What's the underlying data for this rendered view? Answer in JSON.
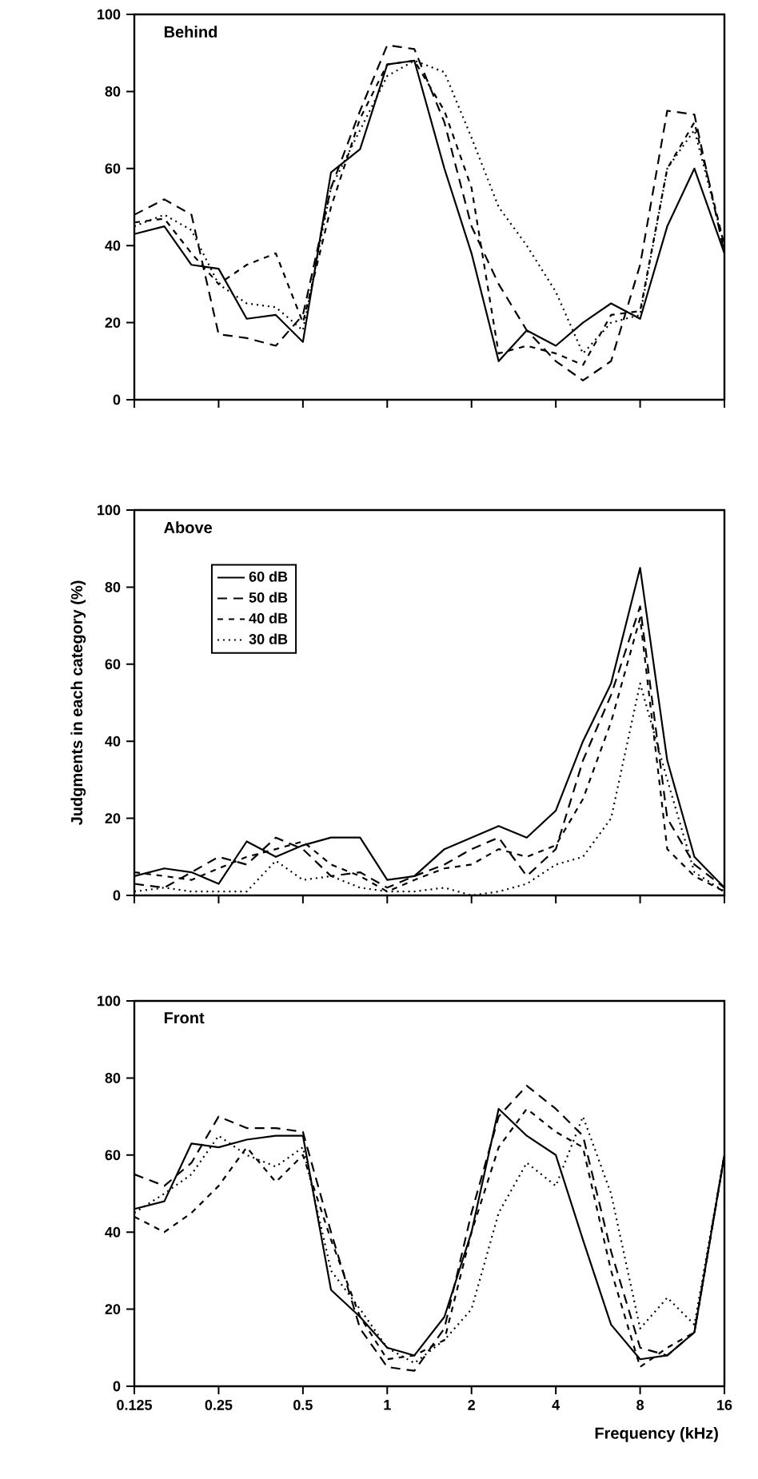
{
  "chart_data": [
    {
      "type": "line",
      "log": "x",
      "title": "Behind",
      "x": [
        0.125,
        0.16,
        0.2,
        0.25,
        0.315,
        0.4,
        0.5,
        0.63,
        0.8,
        1,
        1.25,
        1.6,
        2,
        2.5,
        3.15,
        4,
        5,
        6.3,
        8,
        10,
        12.5,
        16
      ],
      "xlim": [
        0.125,
        16
      ],
      "xticks": [
        0.125,
        0.25,
        0.5,
        1,
        2,
        4,
        8,
        16
      ],
      "ylim": [
        0,
        100
      ],
      "yticks": [
        0,
        20,
        40,
        60,
        80,
        100
      ],
      "tick_labels": "y",
      "series": [
        {
          "color": "#000000",
          "line_style": "solid",
          "values": [
            43,
            45,
            35,
            34,
            21,
            22,
            15,
            59,
            65,
            87,
            88,
            60,
            38,
            10,
            18,
            14,
            20,
            25,
            21,
            45,
            60,
            38
          ]
        },
        {
          "color": "#000000",
          "line_style": "dashed",
          "values": [
            48,
            52,
            48,
            17,
            16,
            14,
            22,
            55,
            75,
            92,
            91,
            72,
            45,
            30,
            18,
            10,
            5,
            10,
            35,
            75,
            74,
            38
          ]
        },
        {
          "color": "#000000",
          "line_style": "dashed",
          "values": [
            46,
            47,
            38,
            30,
            35,
            38,
            20,
            50,
            73,
            87,
            88,
            75,
            55,
            12,
            14,
            12,
            9,
            22,
            23,
            60,
            72,
            40
          ]
        },
        {
          "color": "#000000",
          "line_style": "dotted",
          "values": [
            45,
            48,
            44,
            30,
            25,
            24,
            18,
            55,
            70,
            84,
            88,
            85,
            68,
            50,
            40,
            28,
            12,
            20,
            22,
            60,
            70,
            40
          ]
        }
      ]
    },
    {
      "type": "line",
      "log": "x",
      "title": "Above",
      "ylabel": "Judgments in each category (%)",
      "x": [
        0.125,
        0.16,
        0.2,
        0.25,
        0.315,
        0.4,
        0.5,
        0.63,
        0.8,
        1,
        1.25,
        1.6,
        2,
        2.5,
        3.15,
        4,
        5,
        6.3,
        8,
        10,
        12.5,
        16
      ],
      "xlim": [
        0.125,
        16
      ],
      "xticks": [
        0.125,
        0.25,
        0.5,
        1,
        2,
        4,
        8,
        16
      ],
      "ylim": [
        0,
        100
      ],
      "yticks": [
        0,
        20,
        40,
        60,
        80,
        100
      ],
      "tick_labels": "y",
      "legend": "top left",
      "series": [
        {
          "name": "60 dB",
          "color": "#000000",
          "line_style": "solid",
          "values": [
            5,
            7,
            6,
            3,
            14,
            10,
            13,
            15,
            15,
            4,
            5,
            12,
            15,
            18,
            15,
            22,
            40,
            55,
            85,
            35,
            10,
            2
          ]
        },
        {
          "name": "50 dB",
          "color": "#000000",
          "line_style": "dashed",
          "values": [
            3,
            2,
            6,
            10,
            8,
            15,
            12,
            5,
            6,
            2,
            5,
            8,
            12,
            15,
            5,
            12,
            35,
            52,
            75,
            20,
            8,
            2
          ]
        },
        {
          "name": "40 dB",
          "color": "#000000",
          "line_style": "dashed",
          "values": [
            6,
            5,
            4,
            7,
            10,
            12,
            14,
            8,
            5,
            1,
            4,
            7,
            8,
            12,
            10,
            13,
            25,
            45,
            72,
            12,
            5,
            1
          ]
        },
        {
          "name": "30 dB",
          "color": "#000000",
          "line_style": "dotted",
          "values": [
            1,
            2,
            1,
            1,
            1,
            9,
            4,
            5,
            2,
            1,
            1,
            2,
            0,
            1,
            3,
            8,
            10,
            20,
            55,
            30,
            6,
            1
          ]
        }
      ]
    },
    {
      "type": "line",
      "log": "x",
      "title": "Front",
      "xlabel": "Frequency (kHz)",
      "x": [
        0.125,
        0.16,
        0.2,
        0.25,
        0.315,
        0.4,
        0.5,
        0.63,
        0.8,
        1,
        1.25,
        1.6,
        2,
        2.5,
        3.15,
        4,
        5,
        6.3,
        8,
        10,
        12.5,
        16
      ],
      "xlim": [
        0.125,
        16
      ],
      "xticks": [
        0.125,
        0.25,
        0.5,
        1,
        2,
        4,
        8,
        16
      ],
      "ylim": [
        0,
        100
      ],
      "yticks": [
        0,
        20,
        40,
        60,
        80,
        100
      ],
      "series": [
        {
          "color": "#000000",
          "line_style": "solid",
          "values": [
            46,
            48,
            63,
            62,
            64,
            65,
            65,
            25,
            18,
            10,
            8,
            18,
            40,
            72,
            65,
            60,
            38,
            16,
            7,
            8,
            14,
            60
          ]
        },
        {
          "color": "#000000",
          "line_style": "dashed",
          "values": [
            55,
            52,
            58,
            70,
            67,
            67,
            66,
            40,
            15,
            5,
            4,
            15,
            45,
            70,
            78,
            72,
            65,
            35,
            10,
            8,
            14,
            60
          ]
        },
        {
          "color": "#000000",
          "line_style": "dashed",
          "values": [
            44,
            40,
            45,
            52,
            62,
            53,
            60,
            38,
            18,
            7,
            8,
            12,
            40,
            62,
            72,
            66,
            62,
            30,
            5,
            10,
            14,
            60
          ]
        },
        {
          "color": "#000000",
          "line_style": "dotted",
          "values": [
            45,
            50,
            55,
            65,
            60,
            57,
            62,
            30,
            20,
            10,
            6,
            12,
            20,
            45,
            58,
            52,
            70,
            50,
            15,
            23,
            16,
            60
          ]
        }
      ]
    }
  ]
}
